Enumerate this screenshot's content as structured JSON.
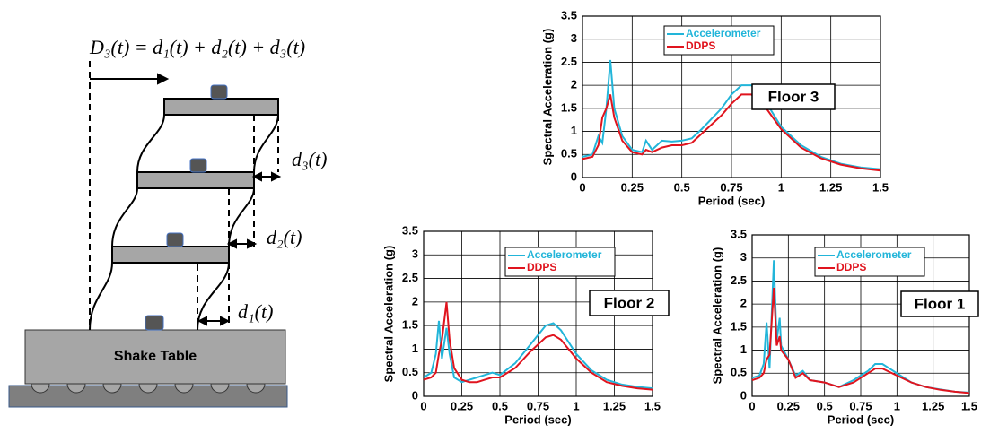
{
  "diagram": {
    "equation": "D₃(t) = d₁(t) + d₂(t) + d₃(t)",
    "d3": "d₃(t)",
    "d2": "d₂(t)",
    "d1": "d₁(t)",
    "table": "Shake Table"
  },
  "chart_data": [
    {
      "type": "line",
      "annotation": "Floor 3",
      "x_label": "Period (sec)",
      "y_label": "Spectral Acceleration (g)",
      "xlim": [
        0,
        1.5
      ],
      "xticks": [
        0,
        0.25,
        0.5,
        0.75,
        1,
        1.25,
        1.5
      ],
      "ylim": [
        0,
        3.5
      ],
      "yticks": [
        0,
        0.5,
        1,
        1.5,
        2,
        2.5,
        3,
        3.5
      ],
      "grid": true,
      "x": [
        0,
        0.05,
        0.08,
        0.1,
        0.12,
        0.14,
        0.16,
        0.2,
        0.25,
        0.3,
        0.32,
        0.35,
        0.4,
        0.45,
        0.5,
        0.55,
        0.6,
        0.7,
        0.75,
        0.8,
        0.85,
        0.9,
        1.0,
        1.1,
        1.2,
        1.3,
        1.4,
        1.5
      ],
      "series": [
        {
          "name": "Accelerometer",
          "color": "#22b5d9",
          "values": [
            0.45,
            0.5,
            0.9,
            0.75,
            1.5,
            2.55,
            1.5,
            0.9,
            0.6,
            0.55,
            0.8,
            0.6,
            0.8,
            0.78,
            0.8,
            0.85,
            1.05,
            1.5,
            1.8,
            2.0,
            2.0,
            1.8,
            1.1,
            0.7,
            0.45,
            0.3,
            0.22,
            0.18
          ]
        },
        {
          "name": "DDPS",
          "color": "#e0141e",
          "values": [
            0.4,
            0.45,
            0.7,
            1.3,
            1.5,
            1.8,
            1.3,
            0.8,
            0.55,
            0.5,
            0.6,
            0.55,
            0.65,
            0.7,
            0.7,
            0.75,
            0.95,
            1.35,
            1.6,
            1.8,
            1.8,
            1.65,
            1.05,
            0.65,
            0.42,
            0.28,
            0.2,
            0.15
          ]
        }
      ]
    },
    {
      "type": "line",
      "annotation": "Floor 2",
      "x_label": "Period (sec)",
      "y_label": "Spectral Acceleration (g)",
      "xlim": [
        0,
        1.5
      ],
      "xticks": [
        0,
        0.25,
        0.5,
        0.75,
        1,
        1.25,
        1.5
      ],
      "ylim": [
        0,
        3.5
      ],
      "yticks": [
        0,
        0.5,
        1,
        1.5,
        2,
        2.5,
        3,
        3.5
      ],
      "grid": true,
      "x": [
        0,
        0.05,
        0.08,
        0.1,
        0.12,
        0.15,
        0.17,
        0.2,
        0.25,
        0.3,
        0.35,
        0.4,
        0.45,
        0.5,
        0.6,
        0.7,
        0.8,
        0.85,
        0.9,
        1.0,
        1.1,
        1.2,
        1.3,
        1.4,
        1.5
      ],
      "series": [
        {
          "name": "Accelerometer",
          "color": "#22b5d9",
          "values": [
            0.4,
            0.5,
            0.9,
            1.6,
            0.8,
            1.45,
            0.9,
            0.4,
            0.3,
            0.35,
            0.4,
            0.45,
            0.5,
            0.45,
            0.7,
            1.1,
            1.5,
            1.55,
            1.4,
            0.9,
            0.55,
            0.35,
            0.25,
            0.2,
            0.17
          ]
        },
        {
          "name": "DDPS",
          "color": "#e0141e",
          "values": [
            0.35,
            0.4,
            0.5,
            0.9,
            1.2,
            2.0,
            1.2,
            0.6,
            0.35,
            0.3,
            0.3,
            0.35,
            0.4,
            0.4,
            0.6,
            0.95,
            1.25,
            1.3,
            1.2,
            0.8,
            0.5,
            0.3,
            0.22,
            0.17,
            0.14
          ]
        }
      ]
    },
    {
      "type": "line",
      "annotation": "Floor 1",
      "x_label": "Period (sec)",
      "y_label": "Spectral Acceleration (g)",
      "xlim": [
        0,
        1.5
      ],
      "xticks": [
        0,
        0.25,
        0.5,
        0.75,
        1,
        1.25,
        1.5
      ],
      "ylim": [
        0,
        3.5
      ],
      "yticks": [
        0,
        0.5,
        1,
        1.5,
        2,
        2.5,
        3,
        3.5
      ],
      "grid": true,
      "x": [
        0,
        0.05,
        0.08,
        0.1,
        0.12,
        0.15,
        0.17,
        0.19,
        0.2,
        0.25,
        0.3,
        0.35,
        0.4,
        0.5,
        0.6,
        0.7,
        0.8,
        0.85,
        0.9,
        1.0,
        1.1,
        1.2,
        1.3,
        1.4,
        1.5
      ],
      "series": [
        {
          "name": "Accelerometer",
          "color": "#22b5d9",
          "values": [
            0.4,
            0.45,
            0.7,
            1.6,
            0.6,
            2.95,
            1.2,
            1.7,
            1.1,
            0.8,
            0.45,
            0.55,
            0.35,
            0.3,
            0.2,
            0.35,
            0.55,
            0.7,
            0.7,
            0.5,
            0.3,
            0.2,
            0.15,
            0.1,
            0.08
          ]
        },
        {
          "name": "DDPS",
          "color": "#e0141e",
          "values": [
            0.35,
            0.4,
            0.5,
            0.8,
            0.9,
            2.35,
            1.1,
            1.3,
            1.0,
            0.8,
            0.4,
            0.5,
            0.35,
            0.3,
            0.2,
            0.3,
            0.5,
            0.6,
            0.6,
            0.45,
            0.3,
            0.2,
            0.14,
            0.1,
            0.07
          ]
        }
      ]
    }
  ]
}
